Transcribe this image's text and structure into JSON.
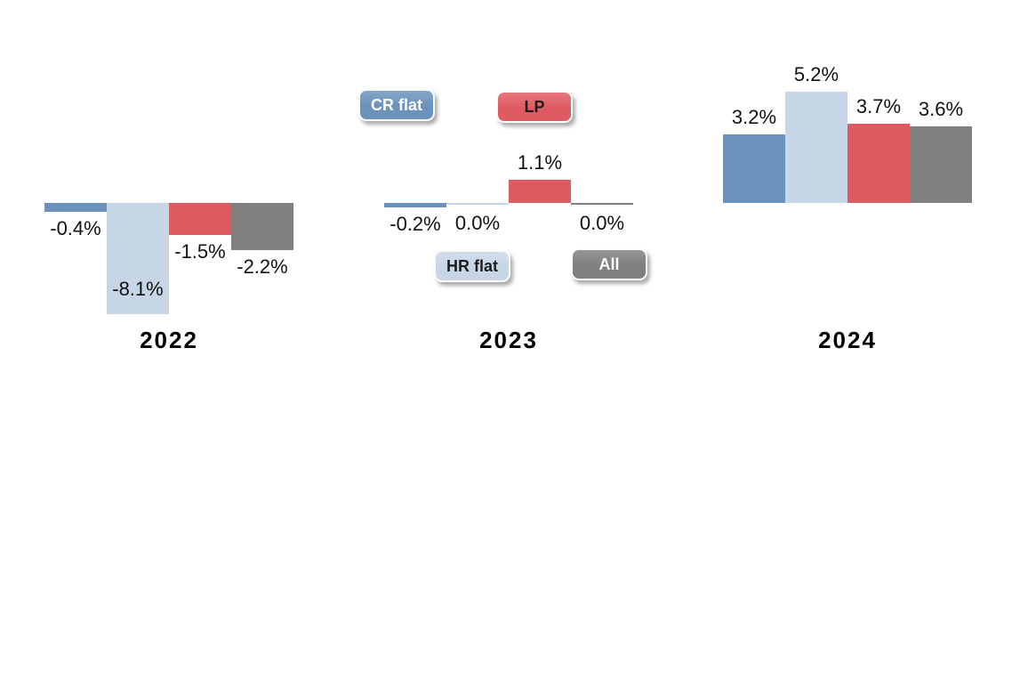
{
  "canvas": {
    "background": "#ffffff"
  },
  "chart_data": {
    "type": "bar",
    "title": "",
    "xlabel": "",
    "ylabel": "",
    "unit": "%",
    "categories": [
      "2022",
      "2023",
      "2024"
    ],
    "series": [
      {
        "name": "CR flat",
        "color": "#6A92BC",
        "values": [
          -0.4,
          -0.2,
          3.2
        ],
        "labels": [
          "-0.4%",
          "-0.2%",
          "3.2%"
        ]
      },
      {
        "name": "HR flat",
        "color": "#C7D6E7",
        "values": [
          -8.1,
          0.0,
          5.2
        ],
        "labels": [
          "-8.1%",
          "0.0%",
          "5.2%"
        ]
      },
      {
        "name": "LP",
        "color": "#E05A61",
        "values": [
          -1.5,
          1.1,
          3.7
        ],
        "labels": [
          "-1.5%",
          "1.1%",
          "3.7%"
        ]
      },
      {
        "name": "All",
        "color": "#7F7F7F",
        "values": [
          -2.2,
          0.0,
          3.6
        ],
        "labels": [
          "-2.2%",
          "0.0%",
          "3.6%"
        ]
      }
    ],
    "legend": [
      {
        "label": "CR flat",
        "bg": "#6A92BC",
        "text_color": "#ffffff"
      },
      {
        "label": "LP",
        "bg": "#E05A61",
        "text_color": "#1c1c1c"
      },
      {
        "label": "HR flat",
        "bg": "#C7D6E7",
        "text_color": "#1c1c1c"
      },
      {
        "label": "All",
        "bg": "#7F7F7F",
        "text_color": "#ffffff"
      }
    ],
    "legend_position": "inside middle panel (2023), buttons above and below the bars",
    "ylim": [
      -5.2,
      5.2
    ],
    "grid": false,
    "axes_hidden": true,
    "note_clipped_bar": "2022 HR flat bar (-8.1%) is clipped at axis minimum; its label sits inside the bar",
    "value_label_color": "#111111",
    "category_label_color": "#000000"
  }
}
